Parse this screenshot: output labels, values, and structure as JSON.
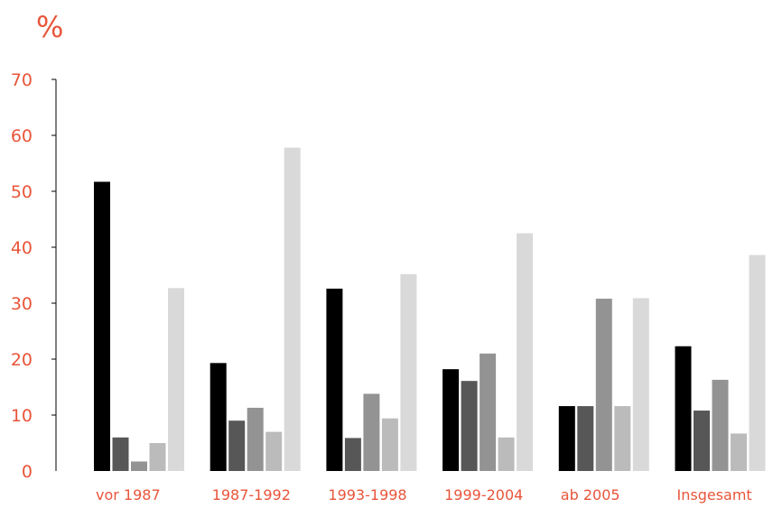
{
  "chart_data": {
    "type": "bar",
    "title": "",
    "ylabel": "%",
    "xlabel": "",
    "ylim": [
      0,
      70
    ],
    "yticks": [
      0,
      10,
      20,
      30,
      40,
      50,
      60,
      70
    ],
    "grid": false,
    "legend": "none",
    "categories": [
      "vor 1987",
      "1987-1992",
      "1993-1998",
      "1999-2004",
      "ab 2005",
      "Insgesamt"
    ],
    "series": [
      {
        "color": "#000000",
        "values": [
          51.7,
          19.3,
          32.6,
          18.2,
          11.6,
          22.3
        ]
      },
      {
        "color": "#575757",
        "values": [
          6.0,
          9.0,
          5.9,
          16.1,
          11.6,
          10.8
        ]
      },
      {
        "color": "#939393",
        "values": [
          1.7,
          11.3,
          13.8,
          21.0,
          30.8,
          16.3
        ]
      },
      {
        "color": "#bbbbbb",
        "values": [
          5.0,
          7.0,
          9.4,
          6.0,
          11.6,
          6.7
        ]
      },
      {
        "color": "#d9d9d9",
        "values": [
          32.7,
          57.8,
          35.2,
          42.5,
          30.9,
          38.6
        ]
      }
    ]
  }
}
